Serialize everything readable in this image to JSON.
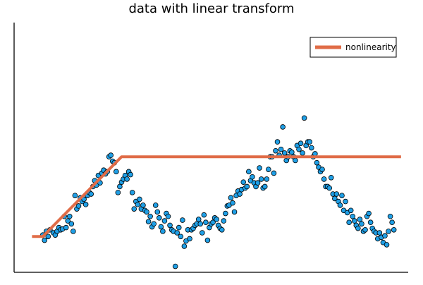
{
  "chart_data": {
    "type": "scatter",
    "title": "data with linear transform",
    "xlabel": "",
    "ylabel": "",
    "xlim": [
      -0.05,
      1.05
    ],
    "ylim": [
      -1.45,
      1.9
    ],
    "grid": false,
    "legend_position": "top-right",
    "colors": {
      "points": "#1f9fe6",
      "point_stroke": "#000000",
      "line": "#e06c47",
      "axes": "#000000"
    },
    "series": [
      {
        "kind": "scatter",
        "values": [
          [
            0.03,
            -0.95
          ],
          [
            0.035,
            -1.02
          ],
          [
            0.04,
            -0.9
          ],
          [
            0.045,
            -0.97
          ],
          [
            0.05,
            -0.88
          ],
          [
            0.06,
            -0.92
          ],
          [
            0.065,
            -0.95
          ],
          [
            0.07,
            -0.9
          ],
          [
            0.075,
            -0.85
          ],
          [
            0.08,
            -0.88
          ],
          [
            0.085,
            -0.87
          ],
          [
            0.09,
            -0.7
          ],
          [
            0.095,
            -0.85
          ],
          [
            0.1,
            -0.76
          ],
          [
            0.105,
            -0.7
          ],
          [
            0.11,
            -0.8
          ],
          [
            0.115,
            -0.9
          ],
          [
            0.12,
            -0.42
          ],
          [
            0.125,
            -0.6
          ],
          [
            0.13,
            -0.56
          ],
          [
            0.135,
            -0.45
          ],
          [
            0.14,
            -0.5
          ],
          [
            0.145,
            -0.47
          ],
          [
            0.15,
            -0.54
          ],
          [
            0.155,
            -0.42
          ],
          [
            0.16,
            -0.38
          ],
          [
            0.165,
            -0.4
          ],
          [
            0.17,
            -0.3
          ],
          [
            0.175,
            -0.22
          ],
          [
            0.18,
            -0.28
          ],
          [
            0.185,
            -0.15
          ],
          [
            0.19,
            -0.25
          ],
          [
            0.195,
            -0.12
          ],
          [
            0.2,
            -0.08
          ],
          [
            0.205,
            -0.13
          ],
          [
            0.21,
            -0.1
          ],
          [
            0.215,
            0.1
          ],
          [
            0.22,
            0.12
          ],
          [
            0.225,
            0.04
          ],
          [
            0.23,
            0.02
          ],
          [
            0.235,
            -0.1
          ],
          [
            0.24,
            -0.38
          ],
          [
            0.245,
            -0.3
          ],
          [
            0.25,
            -0.24
          ],
          [
            0.255,
            -0.2
          ],
          [
            0.26,
            -0.15
          ],
          [
            0.265,
            -0.2
          ],
          [
            0.27,
            -0.1
          ],
          [
            0.275,
            -0.14
          ],
          [
            0.28,
            -0.38
          ],
          [
            0.285,
            -0.6
          ],
          [
            0.29,
            -0.5
          ],
          [
            0.295,
            -0.54
          ],
          [
            0.3,
            -0.47
          ],
          [
            0.305,
            -0.6
          ],
          [
            0.31,
            -0.55
          ],
          [
            0.315,
            -0.62
          ],
          [
            0.32,
            -0.64
          ],
          [
            0.325,
            -0.77
          ],
          [
            0.33,
            -0.7
          ],
          [
            0.335,
            -0.84
          ],
          [
            0.34,
            -0.8
          ],
          [
            0.345,
            -0.55
          ],
          [
            0.35,
            -0.64
          ],
          [
            0.355,
            -0.72
          ],
          [
            0.36,
            -0.84
          ],
          [
            0.365,
            -0.9
          ],
          [
            0.37,
            -0.76
          ],
          [
            0.375,
            -0.66
          ],
          [
            0.38,
            -0.7
          ],
          [
            0.385,
            -0.82
          ],
          [
            0.39,
            -0.88
          ],
          [
            0.395,
            -0.9
          ],
          [
            0.4,
            -1.37
          ],
          [
            0.405,
            -0.92
          ],
          [
            0.41,
            -0.85
          ],
          [
            0.415,
            -0.97
          ],
          [
            0.42,
            -0.75
          ],
          [
            0.425,
            -1.1
          ],
          [
            0.43,
            -1.03
          ],
          [
            0.435,
            -0.88
          ],
          [
            0.44,
            -1.0
          ],
          [
            0.445,
            -0.88
          ],
          [
            0.45,
            -0.86
          ],
          [
            0.455,
            -0.82
          ],
          [
            0.46,
            -0.8
          ],
          [
            0.465,
            -0.74
          ],
          [
            0.47,
            -0.8
          ],
          [
            0.475,
            -0.92
          ],
          [
            0.48,
            -0.68
          ],
          [
            0.485,
            -0.78
          ],
          [
            0.49,
            -1.02
          ],
          [
            0.495,
            -0.85
          ],
          [
            0.5,
            -0.8
          ],
          [
            0.505,
            -0.78
          ],
          [
            0.51,
            -0.72
          ],
          [
            0.515,
            -0.74
          ],
          [
            0.52,
            -0.82
          ],
          [
            0.525,
            -0.86
          ],
          [
            0.53,
            -0.88
          ],
          [
            0.535,
            -0.76
          ],
          [
            0.54,
            -0.66
          ],
          [
            0.545,
            -0.56
          ],
          [
            0.55,
            -0.55
          ],
          [
            0.555,
            -0.45
          ],
          [
            0.56,
            -0.52
          ],
          [
            0.565,
            -0.64
          ],
          [
            0.57,
            -0.42
          ],
          [
            0.575,
            -0.36
          ],
          [
            0.58,
            -0.4
          ],
          [
            0.585,
            -0.34
          ],
          [
            0.59,
            -0.24
          ],
          [
            0.595,
            -0.32
          ],
          [
            0.6,
            -0.3
          ],
          [
            0.605,
            -0.1
          ],
          [
            0.61,
            -0.22
          ],
          [
            0.615,
            -0.17
          ],
          [
            0.62,
            -0.25
          ],
          [
            0.625,
            -0.3
          ],
          [
            0.63,
            -0.25
          ],
          [
            0.635,
            -0.05
          ],
          [
            0.64,
            -0.2
          ],
          [
            0.645,
            -0.32
          ],
          [
            0.65,
            -0.3
          ],
          [
            0.655,
            -0.2
          ],
          [
            0.66,
            -0.07
          ],
          [
            0.665,
            0.1
          ],
          [
            0.67,
            0.1
          ],
          [
            0.675,
            -0.12
          ],
          [
            0.68,
            0.18
          ],
          [
            0.685,
            0.3
          ],
          [
            0.69,
            0.12
          ],
          [
            0.695,
            0.2
          ],
          [
            0.7,
            0.5
          ],
          [
            0.705,
            0.15
          ],
          [
            0.71,
            0.05
          ],
          [
            0.715,
            0.1
          ],
          [
            0.72,
            0.18
          ],
          [
            0.725,
            0.16
          ],
          [
            0.73,
            0.1
          ],
          [
            0.735,
            0.05
          ],
          [
            0.74,
            0.25
          ],
          [
            0.745,
            0.2
          ],
          [
            0.75,
            0.28
          ],
          [
            0.755,
            0.15
          ],
          [
            0.76,
            0.62
          ],
          [
            0.765,
            0.25
          ],
          [
            0.77,
            0.3
          ],
          [
            0.775,
            0.3
          ],
          [
            0.78,
            0.22
          ],
          [
            0.785,
            0.1
          ],
          [
            0.79,
            0.14
          ],
          [
            0.795,
            0.02
          ],
          [
            0.8,
            -0.04
          ],
          [
            0.805,
            -0.1
          ],
          [
            0.81,
            -0.07
          ],
          [
            0.815,
            -0.2
          ],
          [
            0.82,
            -0.3
          ],
          [
            0.825,
            -0.3
          ],
          [
            0.83,
            -0.32
          ],
          [
            0.835,
            -0.18
          ],
          [
            0.84,
            -0.4
          ],
          [
            0.845,
            -0.46
          ],
          [
            0.85,
            -0.4
          ],
          [
            0.855,
            -0.5
          ],
          [
            0.86,
            -0.55
          ],
          [
            0.865,
            -0.42
          ],
          [
            0.87,
            -0.62
          ],
          [
            0.875,
            -0.5
          ],
          [
            0.88,
            -0.65
          ],
          [
            0.885,
            -0.78
          ],
          [
            0.89,
            -0.62
          ],
          [
            0.895,
            -0.7
          ],
          [
            0.9,
            -0.76
          ],
          [
            0.905,
            -0.82
          ],
          [
            0.91,
            -0.86
          ],
          [
            0.915,
            -0.74
          ],
          [
            0.92,
            -0.8
          ],
          [
            0.925,
            -0.9
          ],
          [
            0.93,
            -0.88
          ],
          [
            0.935,
            -0.7
          ],
          [
            0.94,
            -0.66
          ],
          [
            0.945,
            -0.78
          ],
          [
            0.95,
            -0.86
          ],
          [
            0.955,
            -0.9
          ],
          [
            0.96,
            -0.92
          ],
          [
            0.965,
            -1.0
          ],
          [
            0.97,
            -0.92
          ],
          [
            0.975,
            -0.98
          ],
          [
            0.98,
            -1.05
          ],
          [
            0.985,
            -0.96
          ],
          [
            0.99,
            -1.08
          ],
          [
            0.995,
            -0.9
          ],
          [
            1.0,
            -0.7
          ],
          [
            1.005,
            -0.78
          ],
          [
            1.01,
            -0.88
          ]
        ]
      },
      {
        "kind": "line",
        "name": "nonlinearity",
        "x": [
          0.0,
          0.03,
          0.25,
          1.03
        ],
        "y": [
          -0.97,
          -0.97,
          0.1,
          0.1
        ]
      }
    ]
  }
}
